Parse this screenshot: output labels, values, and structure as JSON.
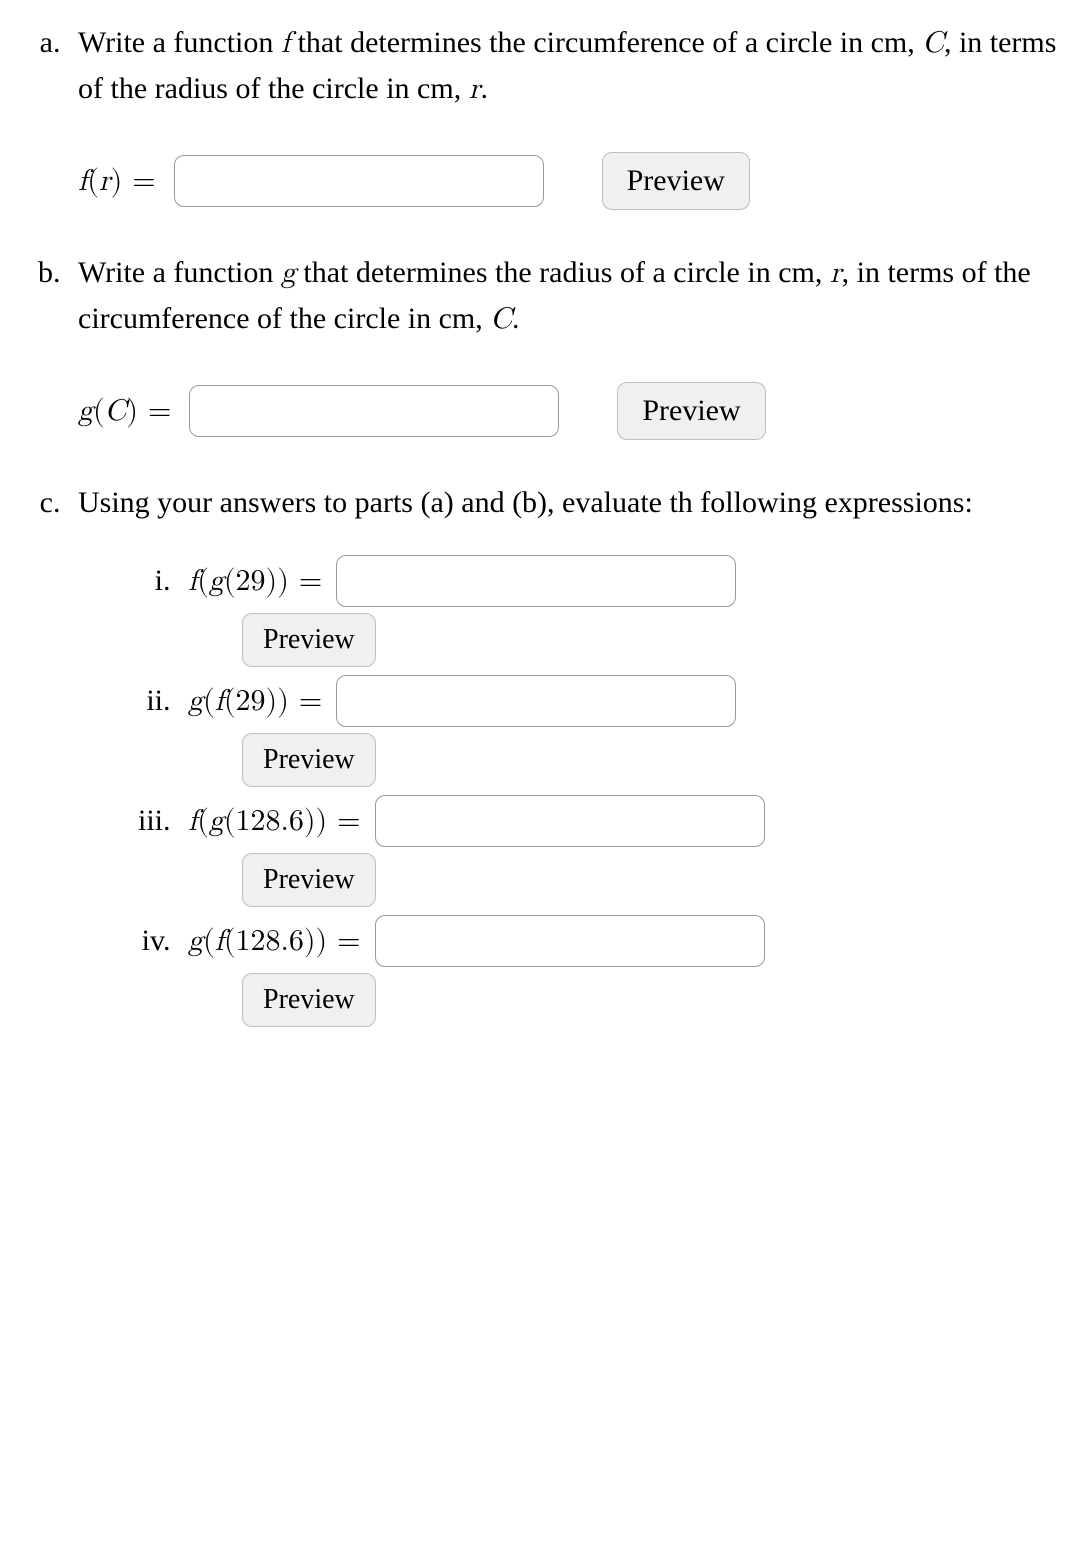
{
  "parts": {
    "a": {
      "text_segments": [
        "Write a function ",
        " that determines the circumference of a circle in cm, ",
        ", in terms of the radius of the circle in cm, ",
        "."
      ],
      "fn_var1": "f",
      "cap_var": "C",
      "var2": "r",
      "lhs_fn": "f",
      "lhs_arg": "r",
      "eq": " = ",
      "preview": "Preview"
    },
    "b": {
      "text_segments": [
        "Write a function ",
        " that determines the radius of a circle in cm, ",
        ", in terms of the circumference of the circle in cm, ",
        "."
      ],
      "fn_var1": "g",
      "var2": "r",
      "cap_var": "C",
      "lhs_fn": "g",
      "lhs_arg": "C",
      "eq": " = ",
      "preview": "Preview"
    },
    "c": {
      "text": "Using your answers to parts (a) and (b), evaluate th following expressions:",
      "items": [
        {
          "outer": "f",
          "inner": "g",
          "arg": "29",
          "eq": " = ",
          "preview": "Preview"
        },
        {
          "outer": "g",
          "inner": "f",
          "arg": "29",
          "eq": " = ",
          "preview": "Preview"
        },
        {
          "outer": "f",
          "inner": "g",
          "arg": "128.6",
          "eq": " = ",
          "preview": "Preview"
        },
        {
          "outer": "g",
          "inner": "f",
          "arg": "128.6",
          "eq": " = ",
          "preview": "Preview"
        }
      ]
    }
  }
}
